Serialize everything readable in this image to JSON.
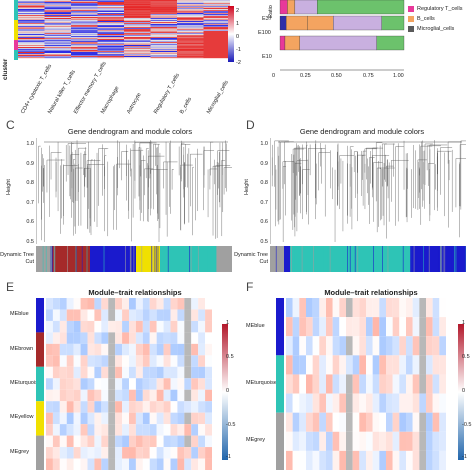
{
  "panels": {
    "A": {
      "letter": "",
      "row_label": "cluster",
      "scale_ticks": [
        "2",
        "1",
        "0",
        "-1",
        "-2"
      ],
      "columns": [
        "CD4+ cytotoxic T_cells",
        "Natural killer T_cells",
        "Effector memory T_cells",
        "Macrophage",
        "Astrocyte",
        "Regulatory T_cells",
        "B_cells",
        "Microglial_cells"
      ]
    },
    "B": {
      "axis_label": "Ratio",
      "rows": [
        "E37",
        "E100",
        "E10"
      ],
      "x_ticks": [
        "0",
        "0.25",
        "0.50",
        "0.75",
        "1.00"
      ],
      "legend": [
        "Regulatory T_cells",
        "B_cells",
        "Microglial_cells"
      ],
      "legend_colors": [
        "#e8399a",
        "#f4a460",
        "#5a5a5a"
      ]
    },
    "C": {
      "letter": "C",
      "title": "Gene dendrogram and module colors",
      "ylabel": "Height",
      "y_ticks": [
        "1.0",
        "0.9",
        "0.8",
        "0.7",
        "0.6",
        "0.5"
      ],
      "bar_label_1": "Dynamic Tree",
      "bar_label_2": "Cut"
    },
    "D": {
      "letter": "D",
      "title": "Gene dendrogram and module colors",
      "ylabel": "Height",
      "y_ticks": [
        "1.0",
        "0.9",
        "0.8",
        "0.7",
        "0.6",
        "0.5"
      ],
      "bar_label_1": "Dynamic Tree",
      "bar_label_2": "Cut"
    },
    "E": {
      "letter": "E",
      "title": "Module–trait relationships",
      "rows": [
        "MEblue",
        "MEbrown",
        "MEturquoise",
        "MEyellow",
        "MEgrey"
      ],
      "row_colors": [
        "#1a1acd",
        "#a52a2a",
        "#2ec4b6",
        "#f0e000",
        "#a0a0a0"
      ],
      "scale_ticks": [
        "1",
        "0.5",
        "0",
        "-0.5",
        "-1"
      ]
    },
    "F": {
      "letter": "F",
      "title": "Module–trait relationships",
      "rows": [
        "MEblue",
        "MEturquoise",
        "MEgrey"
      ],
      "row_colors": [
        "#1a1acd",
        "#2ec4b6",
        "#a0a0a0"
      ],
      "scale_ticks": [
        "1",
        "0.5",
        "0",
        "-0.5",
        "-1"
      ]
    }
  }
}
